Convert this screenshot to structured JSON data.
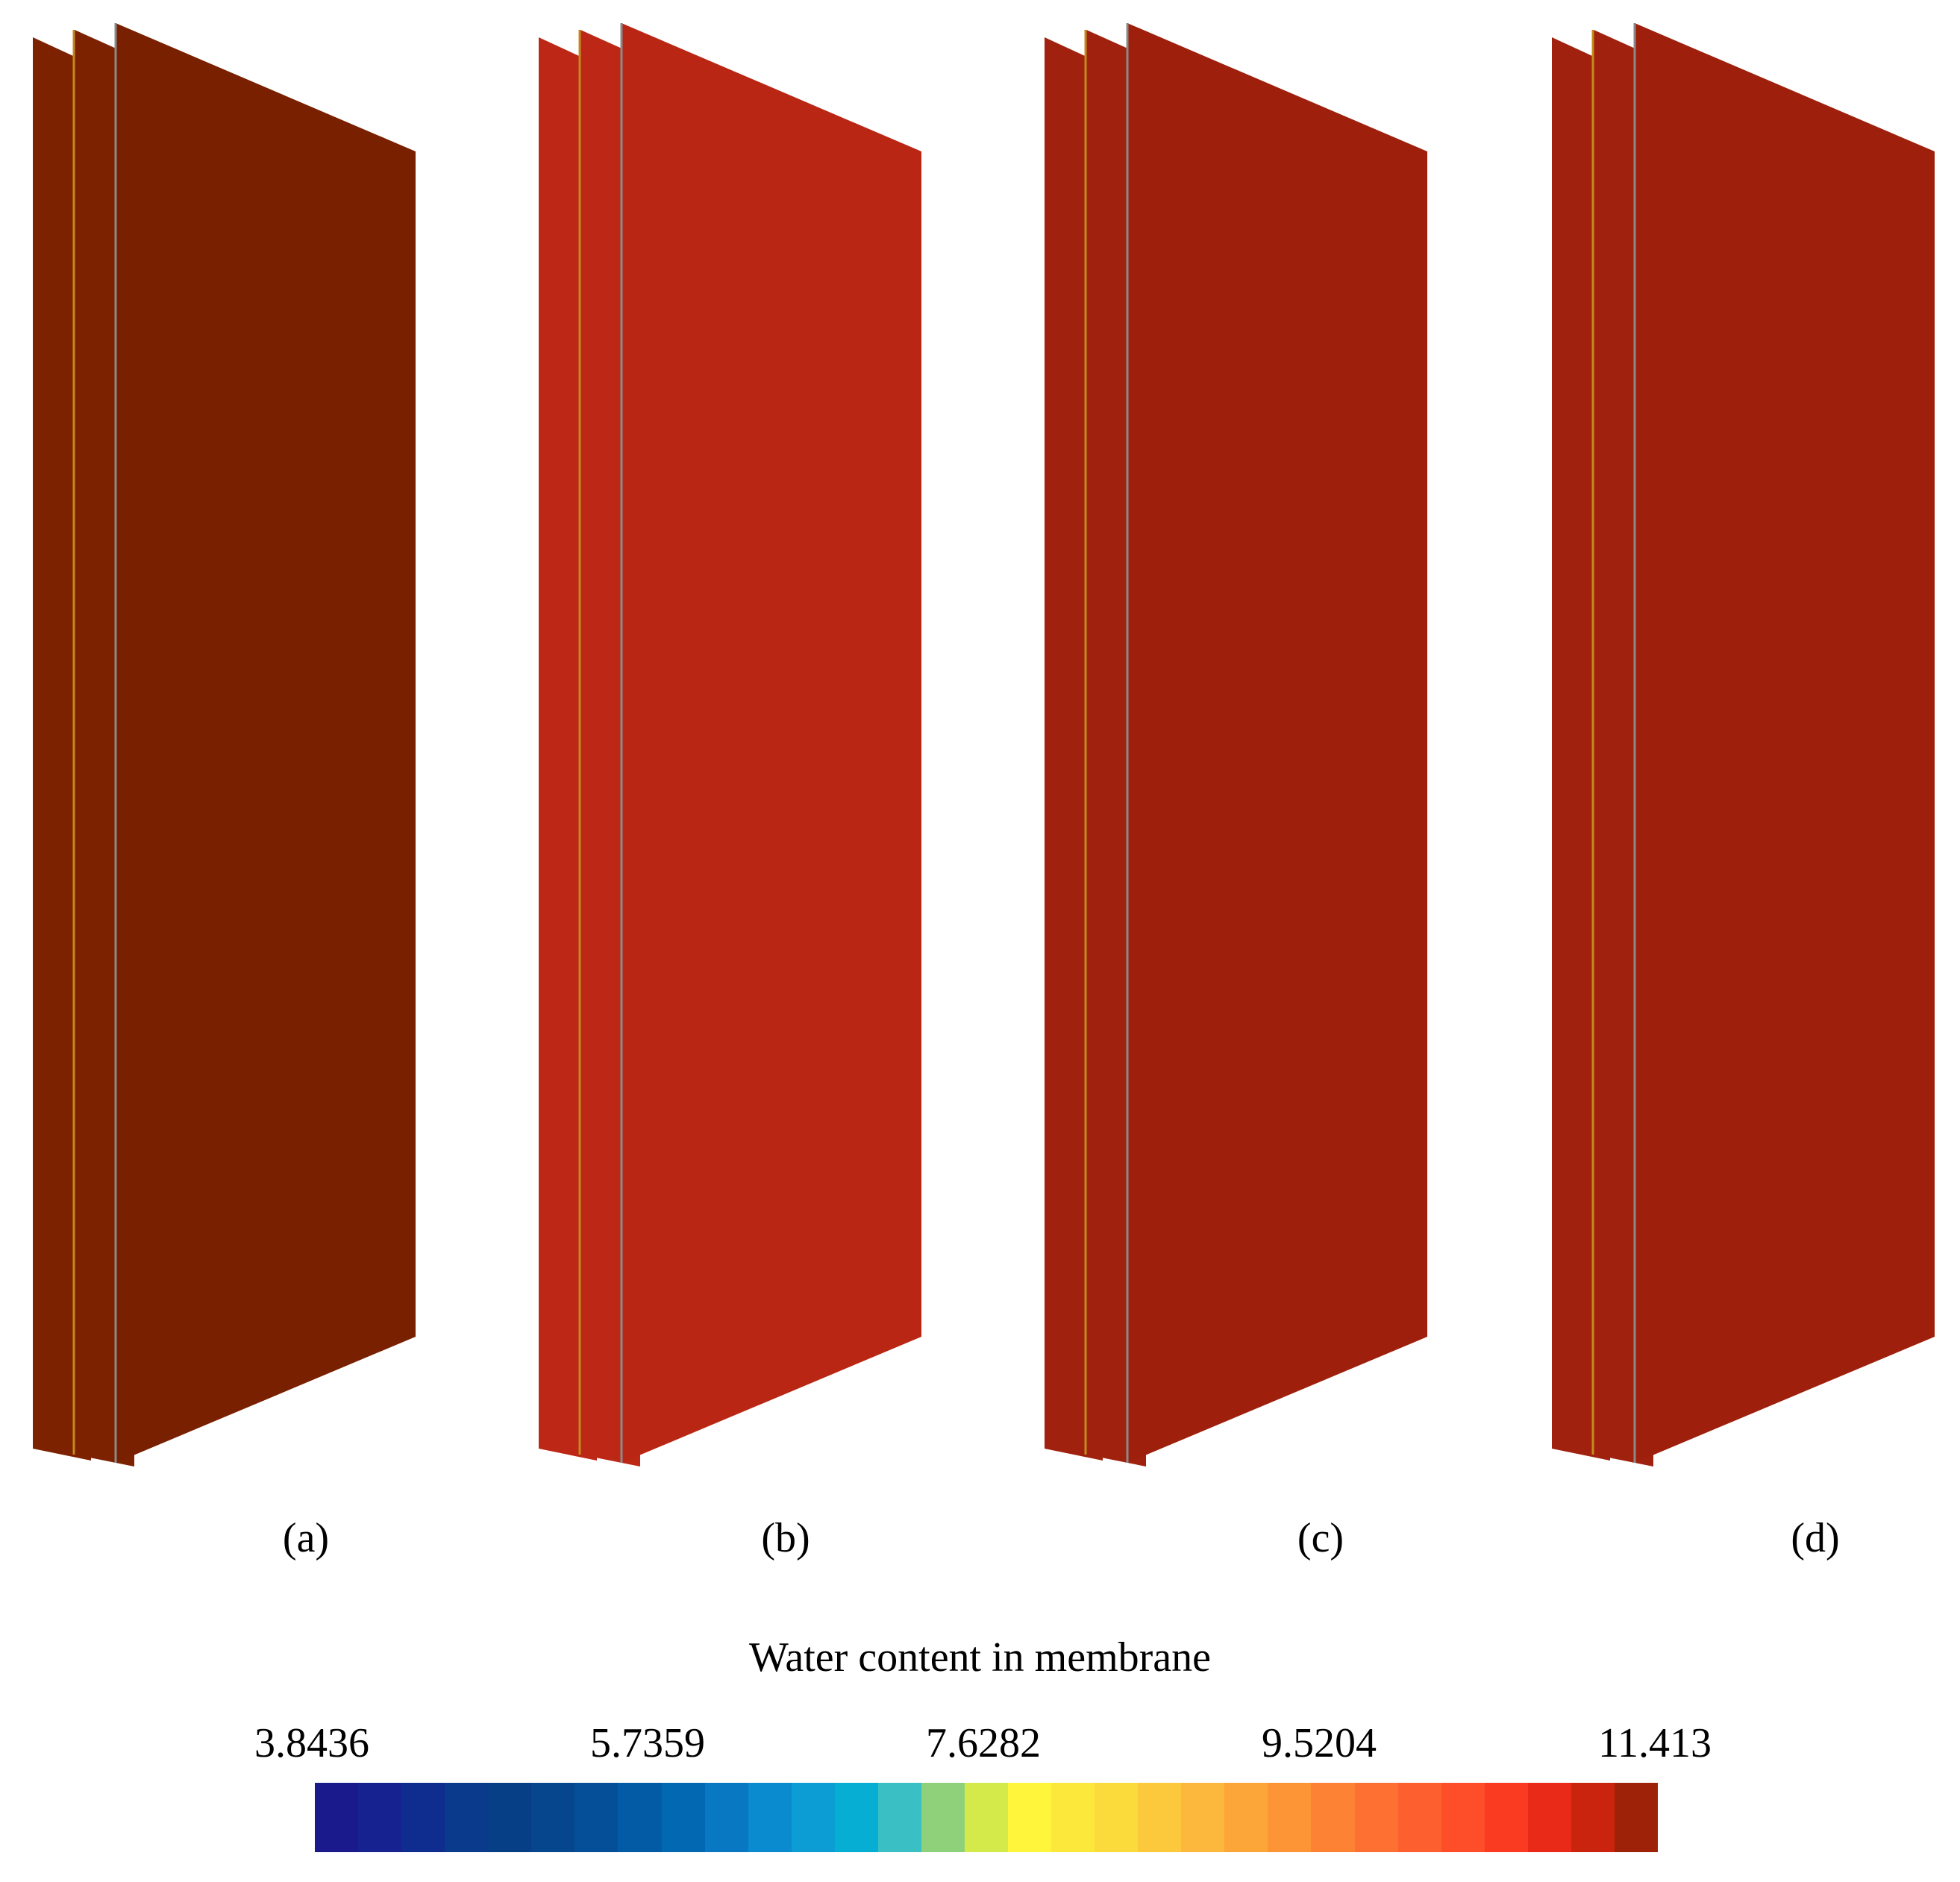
{
  "panels": [
    {
      "label": "(a)",
      "face_color": "#792000",
      "back_color": "#7d2200"
    },
    {
      "label": "(b)",
      "face_color": "#ba2614",
      "back_color": "#bd2816"
    },
    {
      "label": "(c)",
      "face_color": "#9e200c",
      "back_color": "#a0220e"
    },
    {
      "label": "(d)",
      "face_color": "#9e200c",
      "back_color": "#a0220e"
    }
  ],
  "colorbar": {
    "title": "Water content in membrane",
    "ticks": [
      "3.8436",
      "5.7359",
      "7.6282",
      "9.5204",
      "11.413"
    ],
    "colors": [
      "#1a1a8c",
      "#16228f",
      "#0f2d8f",
      "#0a3a8c",
      "#073f86",
      "#05468d",
      "#044f97",
      "#035ba5",
      "#0268b2",
      "#0878c2",
      "#0a8bcf",
      "#0b9dd4",
      "#07aed3",
      "#3ac0c4",
      "#8fd07a",
      "#d4ea4a",
      "#fff53a",
      "#fce83a",
      "#fbdb3c",
      "#fcc93c",
      "#fcb83c",
      "#fca63a",
      "#fd9436",
      "#fe8234",
      "#fe7032",
      "#fe5f2e",
      "#fe4d29",
      "#fa3b22",
      "#ea2a18",
      "#ca240e",
      "#9e2207"
    ]
  }
}
